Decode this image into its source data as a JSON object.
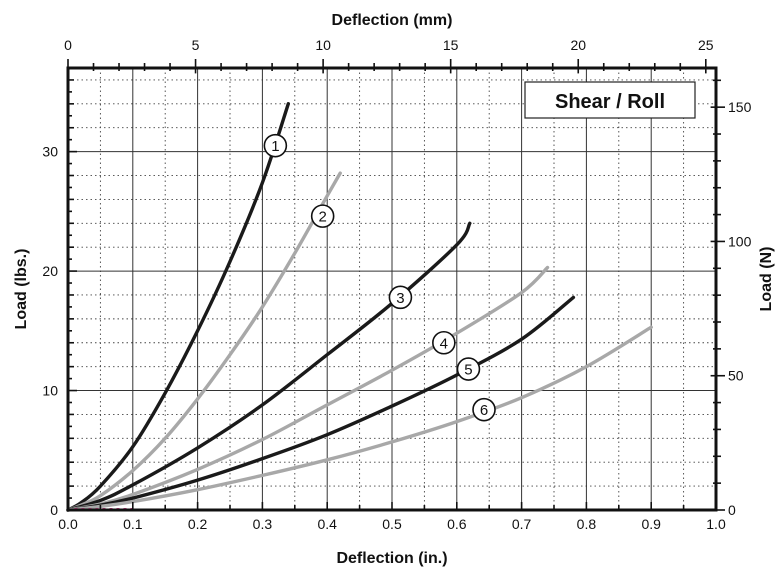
{
  "chart_data": {
    "type": "line",
    "title": "",
    "legend_label": "Shear / Roll",
    "legend_position": "top-right",
    "xlabel": "Deflection (in.)",
    "xlabel_top": "Deflection (mm)",
    "ylabel": "Load (lbs.)",
    "ylabel_right": "Load (N)",
    "xlim": [
      0,
      1.0
    ],
    "ylim": [
      0,
      37
    ],
    "x_ticks": [
      0.0,
      0.1,
      0.2,
      0.3,
      0.4,
      0.5,
      0.6,
      0.7,
      0.8,
      0.9,
      1.0
    ],
    "x_tick_labels": [
      "0.0",
      "0.1",
      "0.2",
      "0.3",
      "0.4",
      "0.5",
      "0.6",
      "0.7",
      "0.8",
      "0.9",
      "1.0"
    ],
    "y_ticks": [
      0,
      10,
      20,
      30
    ],
    "y_tick_labels": [
      "0",
      "10",
      "20",
      "30"
    ],
    "x_top_ticks_mm": [
      0,
      5,
      10,
      15,
      20,
      25
    ],
    "x_top_tick_labels": [
      "0",
      "5",
      "10",
      "15",
      "20",
      "25"
    ],
    "y_right_ticks_N": [
      0,
      50,
      100,
      150
    ],
    "y_right_tick_labels": [
      "0",
      "50",
      "100",
      "150"
    ],
    "grid": true,
    "colors": {
      "dark": "#1a1a1a",
      "light": "#a8a8a8"
    },
    "series": [
      {
        "label": "1",
        "color": "#1a1a1a",
        "label_x": 0.32,
        "label_y": 30.5,
        "points": [
          [
            0,
            0
          ],
          [
            0.02,
            0.6
          ],
          [
            0.05,
            2.0
          ],
          [
            0.1,
            5.3
          ],
          [
            0.15,
            9.8
          ],
          [
            0.2,
            15.0
          ],
          [
            0.25,
            20.8
          ],
          [
            0.3,
            27.4
          ],
          [
            0.34,
            34.0
          ]
        ]
      },
      {
        "label": "2",
        "color": "#a8a8a8",
        "label_x": 0.393,
        "label_y": 24.6,
        "points": [
          [
            0,
            0
          ],
          [
            0.02,
            0.4
          ],
          [
            0.05,
            1.2
          ],
          [
            0.1,
            3.3
          ],
          [
            0.15,
            6.0
          ],
          [
            0.2,
            9.3
          ],
          [
            0.25,
            13.0
          ],
          [
            0.3,
            17.0
          ],
          [
            0.35,
            21.5
          ],
          [
            0.4,
            26.3
          ],
          [
            0.42,
            28.2
          ]
        ]
      },
      {
        "label": "3",
        "color": "#1a1a1a",
        "label_x": 0.513,
        "label_y": 17.8,
        "points": [
          [
            0,
            0
          ],
          [
            0.05,
            0.8
          ],
          [
            0.1,
            2.1
          ],
          [
            0.2,
            5.2
          ],
          [
            0.3,
            8.8
          ],
          [
            0.4,
            13.0
          ],
          [
            0.5,
            17.3
          ],
          [
            0.6,
            22.2
          ],
          [
            0.62,
            24.0
          ]
        ]
      },
      {
        "label": "4",
        "color": "#a8a8a8",
        "label_x": 0.58,
        "label_y": 14.0,
        "points": [
          [
            0,
            0
          ],
          [
            0.05,
            0.5
          ],
          [
            0.1,
            1.3
          ],
          [
            0.2,
            3.4
          ],
          [
            0.3,
            5.9
          ],
          [
            0.4,
            8.8
          ],
          [
            0.5,
            11.7
          ],
          [
            0.6,
            14.8
          ],
          [
            0.7,
            18.2
          ],
          [
            0.74,
            20.3
          ]
        ]
      },
      {
        "label": "5",
        "color": "#1a1a1a",
        "label_x": 0.618,
        "label_y": 11.8,
        "points": [
          [
            0,
            0
          ],
          [
            0.05,
            0.4
          ],
          [
            0.1,
            1.0
          ],
          [
            0.2,
            2.5
          ],
          [
            0.3,
            4.3
          ],
          [
            0.4,
            6.3
          ],
          [
            0.5,
            8.7
          ],
          [
            0.6,
            11.3
          ],
          [
            0.7,
            14.3
          ],
          [
            0.78,
            17.8
          ]
        ]
      },
      {
        "label": "6",
        "color": "#a8a8a8",
        "label_x": 0.642,
        "label_y": 8.4,
        "points": [
          [
            0,
            0
          ],
          [
            0.05,
            0.3
          ],
          [
            0.1,
            0.7
          ],
          [
            0.2,
            1.7
          ],
          [
            0.3,
            2.9
          ],
          [
            0.4,
            4.2
          ],
          [
            0.5,
            5.7
          ],
          [
            0.6,
            7.4
          ],
          [
            0.7,
            9.4
          ],
          [
            0.8,
            12.0
          ],
          [
            0.9,
            15.3
          ]
        ]
      }
    ]
  }
}
